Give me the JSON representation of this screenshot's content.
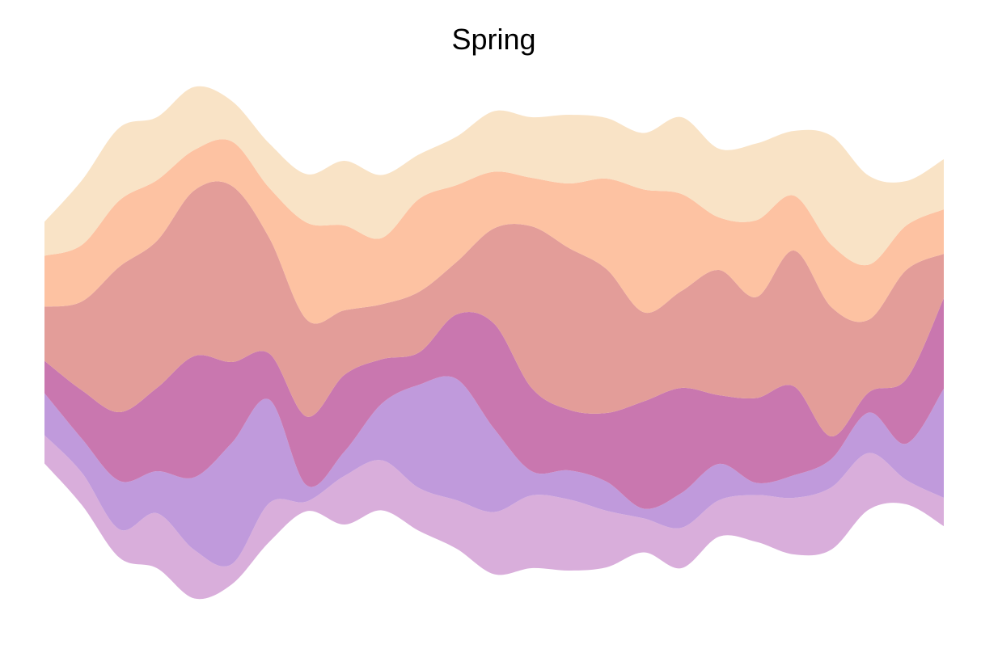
{
  "chart_data": {
    "type": "area",
    "subtype": "streamgraph",
    "title": "Spring",
    "xlabel": "",
    "ylabel": "",
    "axes_visible": false,
    "grid": false,
    "legend": "none",
    "baseline": "symmetric",
    "x": [
      0,
      1,
      2,
      3,
      4,
      5,
      6,
      7,
      8,
      9,
      10,
      11,
      12,
      13,
      14,
      15,
      16,
      17,
      18,
      19,
      20,
      21,
      22,
      23,
      24
    ],
    "series": [
      {
        "color": "#d9aedb",
        "values": [
          35,
          40,
          35,
          68,
          60,
          25,
          48,
          12,
          60,
          62,
          53,
          60,
          77,
          90,
          88,
          70,
          42,
          50,
          45,
          58,
          70,
          77,
          70,
          30,
          35
        ]
      },
      {
        "color": "#c09adc",
        "values": [
          52,
          42,
          60,
          52,
          90,
          150,
          128,
          20,
          30,
          70,
          128,
          150,
          103,
          30,
          36,
          36,
          12,
          43,
          45,
          15,
          28,
          35,
          50,
          45,
          135
        ]
      },
      {
        "color": "#c977af",
        "values": [
          40,
          60,
          85,
          103,
          150,
          100,
          57,
          85,
          95,
          55,
          40,
          80,
          130,
          103,
          75,
          85,
          133,
          130,
          85,
          105,
          110,
          28,
          25,
          80,
          112
        ]
      },
      {
        "color": "#e39d99",
        "values": [
          67,
          110,
          180,
          182,
          205,
          218,
          143,
          120,
          80,
          68,
          75,
          65,
          118,
          200,
          200,
          178,
          110,
          120,
          155,
          125,
          168,
          160,
          90,
          135,
          55
        ]
      },
      {
        "color": "#fdc2a2",
        "values": [
          63,
          70,
          82,
          75,
          50,
          55,
          62,
          120,
          105,
          82,
          115,
          95,
          70,
          60,
          80,
          112,
          152,
          120,
          65,
          95,
          68,
          77,
          68,
          55,
          55
        ]
      },
      {
        "color": "#f9e3c6",
        "values": [
          42,
          80,
          90,
          78,
          78,
          50,
          55,
          60,
          80,
          78,
          55,
          60,
          75,
          75,
          85,
          75,
          70,
          95,
          85,
          95,
          80,
          135,
          110,
          55,
          62
        ]
      }
    ],
    "ylim": [
      -325,
      325
    ]
  }
}
